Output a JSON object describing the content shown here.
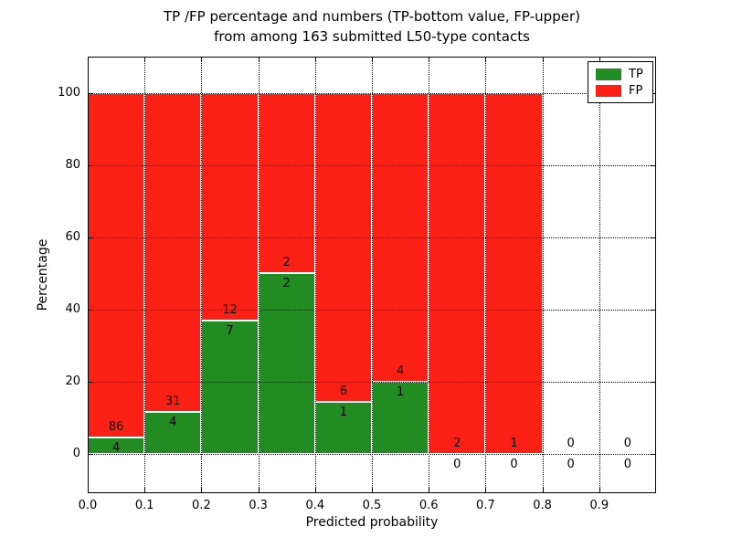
{
  "figure": {
    "title_line1": "TP /FP percentage and numbers (TP-bottom value, FP-upper)",
    "title_line2": "from among 163 submitted L50-type contacts"
  },
  "chart_data": {
    "type": "bar",
    "stacked": true,
    "title": "TP /FP percentage and numbers (TP-bottom value, FP-upper)\nfrom among 163 submitted L50-type contacts",
    "xlabel": "Predicted probability",
    "ylabel": "Percentage",
    "total_contacts": 163,
    "bins": [
      {
        "range": [
          0.0,
          0.1
        ],
        "tp": 4,
        "fp": 86
      },
      {
        "range": [
          0.1,
          0.2
        ],
        "tp": 4,
        "fp": 31
      },
      {
        "range": [
          0.2,
          0.3
        ],
        "tp": 7,
        "fp": 12
      },
      {
        "range": [
          0.3,
          0.4
        ],
        "tp": 2,
        "fp": 2
      },
      {
        "range": [
          0.4,
          0.5
        ],
        "tp": 1,
        "fp": 6
      },
      {
        "range": [
          0.5,
          0.6
        ],
        "tp": 1,
        "fp": 4
      },
      {
        "range": [
          0.6,
          0.7
        ],
        "tp": 0,
        "fp": 2
      },
      {
        "range": [
          0.7,
          0.8
        ],
        "tp": 0,
        "fp": 1
      },
      {
        "range": [
          0.8,
          0.9
        ],
        "tp": 0,
        "fp": 0
      },
      {
        "range": [
          0.9,
          1.0
        ],
        "tp": 0,
        "fp": 0
      }
    ],
    "tp_percent": [
      4.44,
      11.43,
      36.84,
      50.0,
      14.29,
      20.0,
      0.0,
      0.0,
      0.0,
      0.0
    ],
    "bar_total_percent": 100,
    "x_ticks": [
      "0.0",
      "0.1",
      "0.2",
      "0.3",
      "0.4",
      "0.5",
      "0.6",
      "0.7",
      "0.8",
      "0.9"
    ],
    "y_ticks": [
      0,
      20,
      40,
      60,
      80,
      100
    ],
    "xlim": [
      0.0,
      1.0
    ],
    "ylim": [
      -11,
      110
    ],
    "grid": "dotted",
    "colors": {
      "tp": "#228b22",
      "fp": "#fb2015",
      "edge": "#ffffff"
    },
    "legend": {
      "position": "upper right",
      "entries": [
        {
          "label": "TP",
          "color": "#228b22"
        },
        {
          "label": "FP",
          "color": "#fb2015"
        }
      ]
    }
  }
}
